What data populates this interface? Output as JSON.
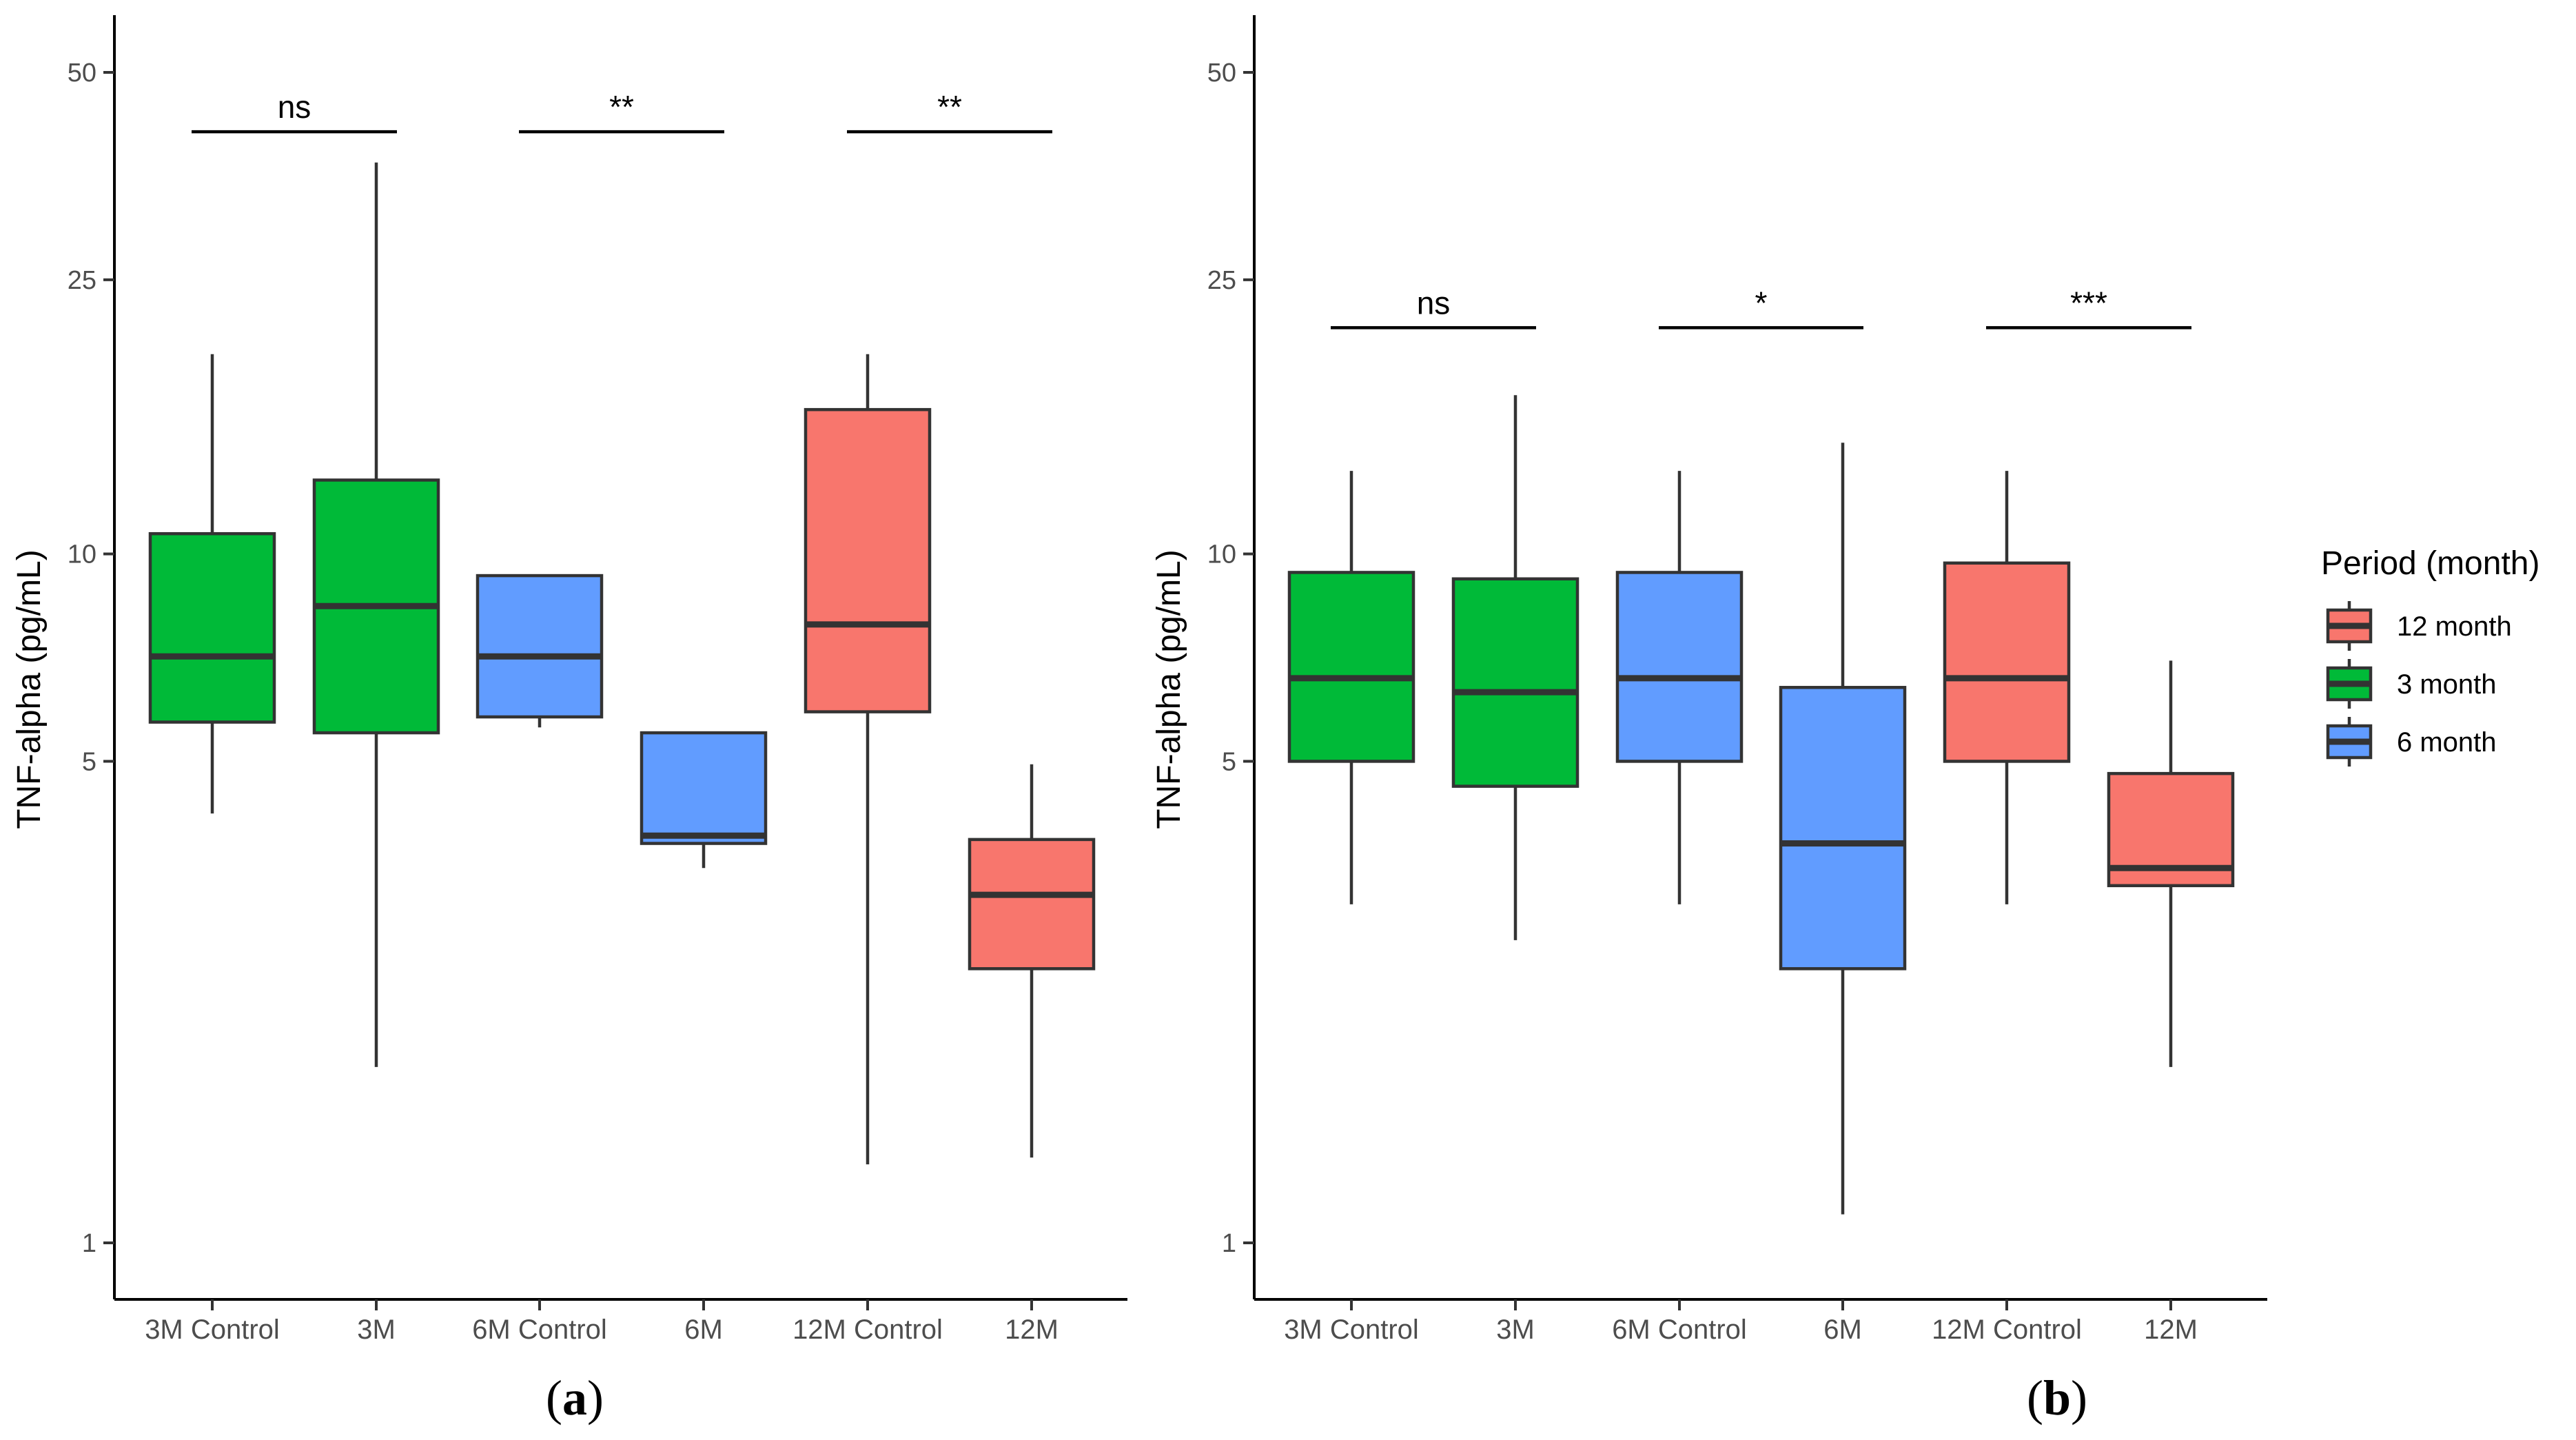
{
  "colors": {
    "12 month": "#F8766D",
    "3 month": "#00BA38",
    "6 month": "#619CFF"
  },
  "legend": {
    "title": "Period (month)",
    "items": [
      {
        "label": "12 month",
        "color_key": "12 month"
      },
      {
        "label": "3 month",
        "color_key": "3 month"
      },
      {
        "label": "6 month",
        "color_key": "6 month"
      }
    ]
  },
  "chart_data": [
    {
      "type": "box",
      "panel_label": "(a)",
      "panel_letter": "a",
      "ylabel": "TNF-alpha (pg/mL)",
      "yscale": "log",
      "ylim": [
        0.87,
        68
      ],
      "yticks": [
        1,
        5,
        10,
        25,
        50
      ],
      "categories": [
        "3M Control",
        "3M",
        "6M Control",
        "6M",
        "12M Control",
        "12M"
      ],
      "boxes": [
        {
          "category": "3M Control",
          "period": "3 month",
          "whisker_low": 4.2,
          "q1": 5.7,
          "median": 7.1,
          "q3": 10.7,
          "whisker_high": 19.5
        },
        {
          "category": "3M",
          "period": "3 month",
          "whisker_low": 1.8,
          "q1": 5.5,
          "median": 8.4,
          "q3": 12.8,
          "whisker_high": 37.0
        },
        {
          "category": "6M Control",
          "period": "6 month",
          "whisker_low": 5.6,
          "q1": 5.8,
          "median": 7.1,
          "q3": 9.3,
          "whisker_high": 9.3
        },
        {
          "category": "6M",
          "period": "6 month",
          "whisker_low": 3.5,
          "q1": 3.8,
          "median": 3.9,
          "q3": 5.5,
          "whisker_high": 5.5
        },
        {
          "category": "12M Control",
          "period": "12 month",
          "whisker_low": 1.3,
          "q1": 5.9,
          "median": 7.9,
          "q3": 16.2,
          "whisker_high": 19.5
        },
        {
          "category": "12M",
          "period": "12 month",
          "whisker_low": 1.33,
          "q1": 2.5,
          "median": 3.2,
          "q3": 3.85,
          "whisker_high": 4.95
        }
      ],
      "significance": [
        {
          "from": "3M Control",
          "to": "3M",
          "y": 41,
          "label": "ns"
        },
        {
          "from": "6M Control",
          "to": "6M",
          "y": 41,
          "label": "**"
        },
        {
          "from": "12M Control",
          "to": "12M",
          "y": 41,
          "label": "**"
        }
      ]
    },
    {
      "type": "box",
      "panel_label": "(b)",
      "panel_letter": "b",
      "ylabel": "TNF-alpha (pg/mL)",
      "yscale": "log",
      "ylim": [
        0.87,
        68
      ],
      "yticks": [
        1,
        5,
        10,
        25,
        50
      ],
      "categories": [
        "3M Control",
        "3M",
        "6M Control",
        "6M",
        "12M Control",
        "12M"
      ],
      "boxes": [
        {
          "category": "3M Control",
          "period": "3 month",
          "whisker_low": 3.1,
          "q1": 5.0,
          "median": 6.6,
          "q3": 9.4,
          "whisker_high": 13.2
        },
        {
          "category": "3M",
          "period": "3 month",
          "whisker_low": 2.75,
          "q1": 4.6,
          "median": 6.3,
          "q3": 9.2,
          "whisker_high": 17.0
        },
        {
          "category": "6M Control",
          "period": "6 month",
          "whisker_low": 3.1,
          "q1": 5.0,
          "median": 6.6,
          "q3": 9.4,
          "whisker_high": 13.2
        },
        {
          "category": "6M",
          "period": "6 month",
          "whisker_low": 1.1,
          "q1": 2.5,
          "median": 3.8,
          "q3": 6.4,
          "whisker_high": 14.5
        },
        {
          "category": "12M Control",
          "period": "12 month",
          "whisker_low": 3.1,
          "q1": 5.0,
          "median": 6.6,
          "q3": 9.7,
          "whisker_high": 13.2
        },
        {
          "category": "12M",
          "period": "12 month",
          "whisker_low": 1.8,
          "q1": 3.3,
          "median": 3.5,
          "q3": 4.8,
          "whisker_high": 7.0
        }
      ],
      "significance": [
        {
          "from": "3M Control",
          "to": "3M",
          "y": 21.3,
          "label": "ns"
        },
        {
          "from": "6M Control",
          "to": "6M",
          "y": 21.3,
          "label": "*"
        },
        {
          "from": "12M Control",
          "to": "12M",
          "y": 21.3,
          "label": "***"
        }
      ]
    }
  ]
}
